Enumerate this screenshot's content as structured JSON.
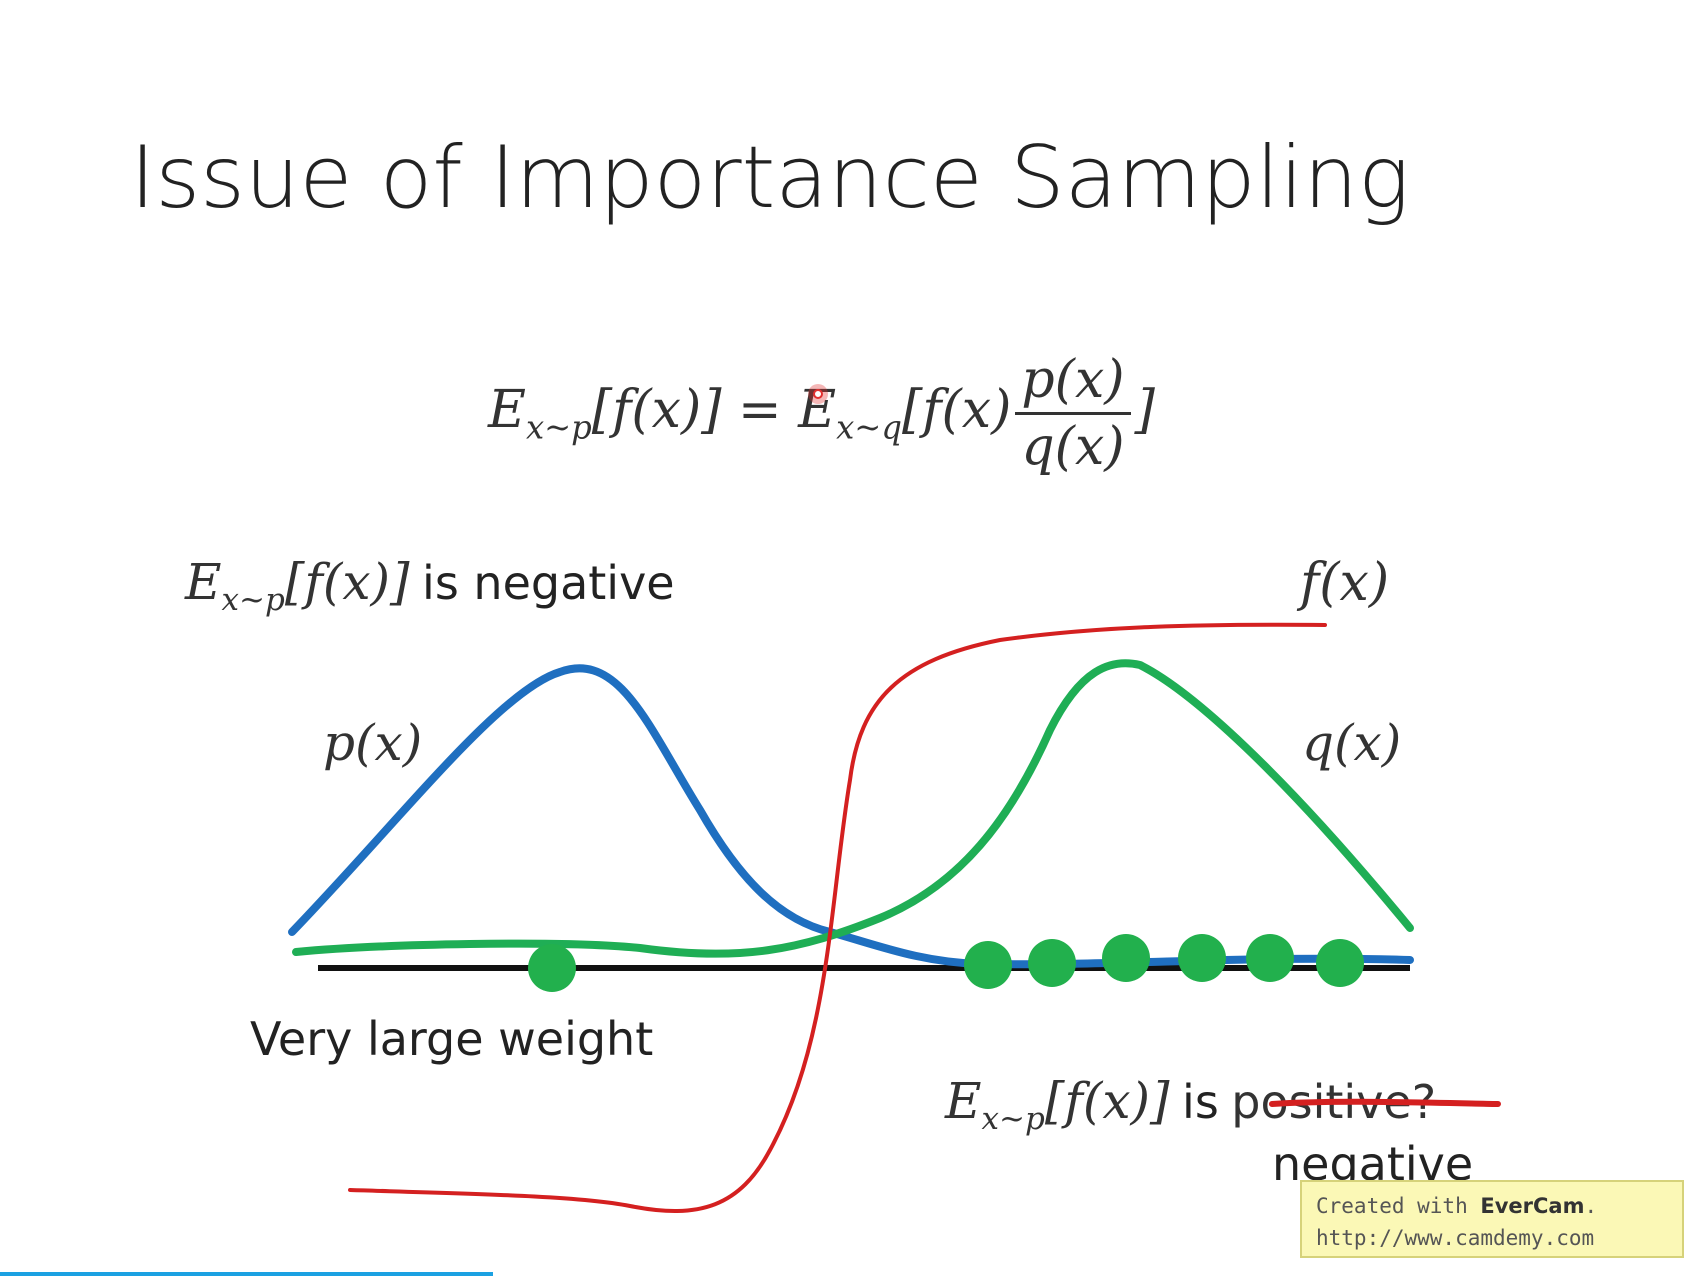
{
  "slide": {
    "title": "Issue of Importance Sampling"
  },
  "equation": {
    "lhs_E": "E",
    "lhs_sub": "x~p",
    "lhs_body": "[f(x)] =",
    "rhs_E": "E",
    "rhs_sub": "x~q",
    "rhs_body": "[f(x)",
    "frac_num": "p(x)",
    "frac_den": "q(x)",
    "close": "]"
  },
  "labels": {
    "neg_E": "E",
    "neg_sub": "x~p",
    "neg_body": "[f(x)]",
    "neg_text": "is negative",
    "f_label": "f(x)",
    "p_label": "p(x)",
    "q_label": "q(x)",
    "weight_text": "Very large weight",
    "pos_E": "E",
    "pos_sub": "x~p",
    "pos_body": "[f(x)]",
    "pos_is": "is",
    "pos_struck": "positive?",
    "pos_correction": "negative"
  },
  "colors": {
    "p_curve": "#1f6fc0",
    "q_curve": "#1fae55",
    "f_curve": "#d42020",
    "axis": "#111111",
    "samples": "#22b04d",
    "pointer": "#e23030"
  },
  "watermark": {
    "line1_prefix": "Created with ",
    "line1_brand": "EverCam",
    "line1_suffix": ".",
    "line2": "http://www.camdemy.com"
  },
  "progress": {
    "fraction": 0.29
  }
}
